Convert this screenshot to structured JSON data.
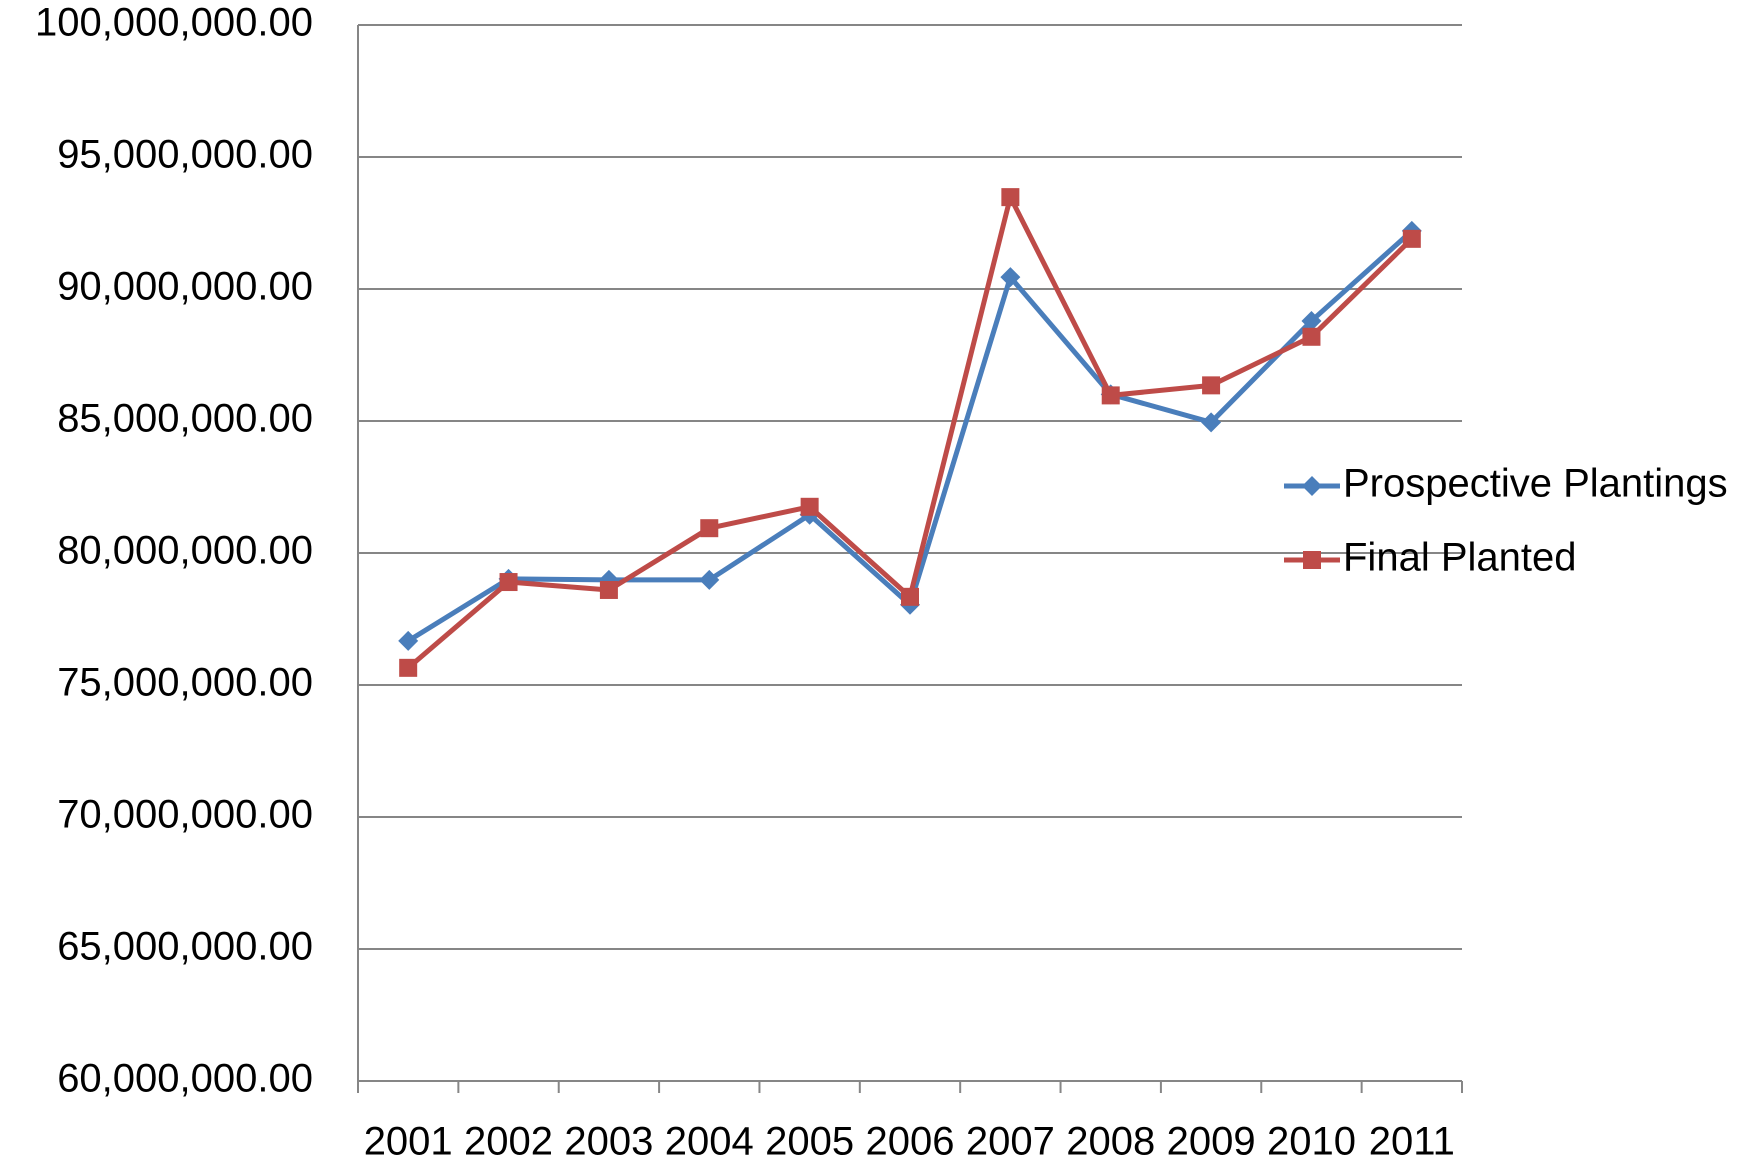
{
  "chart_data": {
    "type": "line",
    "categories": [
      "2001",
      "2002",
      "2003",
      "2004",
      "2005",
      "2006",
      "2007",
      "2008",
      "2009",
      "2010",
      "2011"
    ],
    "series": [
      {
        "name": "Prospective Plantings",
        "color": "#4a7ebb",
        "marker": "diamond",
        "values": [
          76670000,
          79020000,
          78980000,
          78980000,
          81450000,
          78040000,
          90450000,
          86010000,
          84950000,
          88790000,
          92200000
        ]
      },
      {
        "name": "Final Planted",
        "color": "#be4b48",
        "marker": "square",
        "values": [
          75650000,
          78900000,
          78600000,
          80940000,
          81750000,
          78340000,
          93480000,
          85970000,
          86350000,
          88190000,
          91900000
        ]
      }
    ],
    "ylim": [
      60000000,
      100000000
    ],
    "yticks": [
      {
        "value": 60000000,
        "label": "60,000,000.00"
      },
      {
        "value": 65000000,
        "label": "65,000,000.00"
      },
      {
        "value": 70000000,
        "label": "70,000,000.00"
      },
      {
        "value": 75000000,
        "label": "75,000,000.00"
      },
      {
        "value": 80000000,
        "label": "80,000,000.00"
      },
      {
        "value": 85000000,
        "label": "85,000,000.00"
      },
      {
        "value": 90000000,
        "label": "90,000,000.00"
      },
      {
        "value": 95000000,
        "label": "95,000,000.00"
      },
      {
        "value": 100000000,
        "label": "100,000,000.00"
      }
    ],
    "grid": true,
    "legend": "right"
  }
}
